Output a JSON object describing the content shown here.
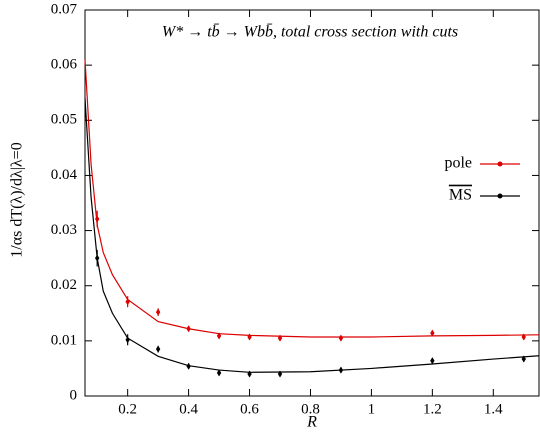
{
  "chart_data": {
    "type": "scatter",
    "title": "W* → tb̄ → Wbb̄, total cross section with cuts",
    "x_label": "R",
    "y_label": "1/αs dT(λ)/dλ|λ=0",
    "xlim": [
      0.06,
      1.55
    ],
    "ylim": [
      0,
      0.07
    ],
    "xticks": [
      0.2,
      0.4,
      0.6,
      0.8,
      1,
      1.2,
      1.4
    ],
    "yticks": [
      0,
      0.01,
      0.02,
      0.03,
      0.04,
      0.05,
      0.06,
      0.07
    ],
    "legend": "right",
    "series": [
      {
        "name": "pole",
        "color": "#dd0000",
        "x": [
          0.1,
          0.2,
          0.3,
          0.4,
          0.5,
          0.6,
          0.7,
          0.9,
          1.2,
          1.5
        ],
        "values": [
          0.0321,
          0.0171,
          0.0152,
          0.0122,
          0.0109,
          0.0107,
          0.0105,
          0.0105,
          0.0114,
          0.0107
        ],
        "errors": [
          0.0015,
          0.001,
          0.0007,
          0.0005,
          0.0005,
          0.0005,
          0.0005,
          0.0005,
          0.0005,
          0.0005
        ],
        "fit_x": [
          0.06,
          0.08,
          0.1,
          0.12,
          0.15,
          0.2,
          0.3,
          0.4,
          0.5,
          0.6,
          0.8,
          1.0,
          1.2,
          1.4,
          1.55
        ],
        "fit_values": [
          0.061,
          0.042,
          0.031,
          0.026,
          0.022,
          0.0175,
          0.0135,
          0.0122,
          0.0113,
          0.011,
          0.0107,
          0.0107,
          0.0109,
          0.011,
          0.0111
        ]
      },
      {
        "name": "MS",
        "color": "#000000",
        "x": [
          0.1,
          0.2,
          0.3,
          0.4,
          0.5,
          0.6,
          0.7,
          0.9,
          1.2,
          1.5
        ],
        "values": [
          0.025,
          0.0102,
          0.0085,
          0.0054,
          0.0042,
          0.004,
          0.004,
          0.0047,
          0.0064,
          0.0067
        ],
        "errors": [
          0.0015,
          0.001,
          0.0006,
          0.0005,
          0.0005,
          0.0005,
          0.0005,
          0.0005,
          0.0005,
          0.0005
        ],
        "fit_x": [
          0.06,
          0.08,
          0.1,
          0.12,
          0.15,
          0.2,
          0.3,
          0.4,
          0.5,
          0.6,
          0.8,
          1.0,
          1.2,
          1.4,
          1.55
        ],
        "fit_values": [
          0.054,
          0.036,
          0.025,
          0.019,
          0.015,
          0.0105,
          0.0072,
          0.0055,
          0.0047,
          0.0043,
          0.0044,
          0.005,
          0.0058,
          0.0067,
          0.0073
        ]
      }
    ]
  }
}
